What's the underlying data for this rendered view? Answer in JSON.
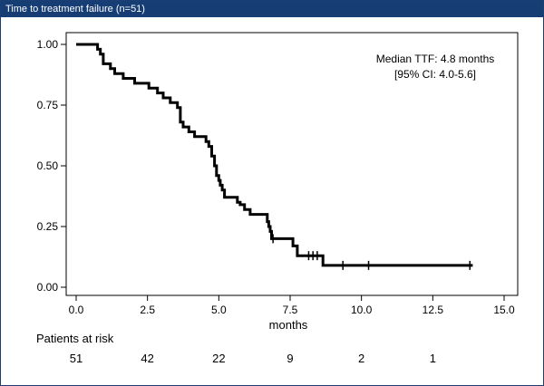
{
  "window_title": "Time to treatment failure (n=51)",
  "chart_data": {
    "type": "line",
    "subtype": "kaplan-meier step",
    "title": "Time to treatment failure (n=51)",
    "xlabel": "months",
    "ylabel": "",
    "xlim": [
      0,
      15
    ],
    "ylim": [
      0,
      1
    ],
    "x_ticks": [
      0,
      2.5,
      5,
      7.5,
      10,
      12.5,
      15
    ],
    "x_tick_labels": [
      "0.0",
      "2.5",
      "5.0",
      "7.5",
      "10.0",
      "12.5",
      "15.0"
    ],
    "y_ticks": [
      0,
      0.25,
      0.5,
      0.75,
      1
    ],
    "y_tick_labels": [
      "0.00",
      "0.25",
      "0.50",
      "0.75",
      "1.00"
    ],
    "grid": false,
    "annotation": {
      "lines": [
        "Median TTF: 4.8 months",
        "[95% CI: 4.0-5.6]"
      ]
    },
    "series": [
      {
        "steps": [
          [
            0,
            1.0
          ],
          [
            0.75,
            0.98
          ],
          [
            0.85,
            0.96
          ],
          [
            0.95,
            0.92
          ],
          [
            1.2,
            0.9
          ],
          [
            1.35,
            0.88
          ],
          [
            1.65,
            0.86
          ],
          [
            2.05,
            0.84
          ],
          [
            2.55,
            0.82
          ],
          [
            2.85,
            0.8
          ],
          [
            3.05,
            0.78
          ],
          [
            3.3,
            0.76
          ],
          [
            3.55,
            0.74
          ],
          [
            3.65,
            0.68
          ],
          [
            3.75,
            0.66
          ],
          [
            3.95,
            0.64
          ],
          [
            4.15,
            0.62
          ],
          [
            4.55,
            0.6
          ],
          [
            4.65,
            0.58
          ],
          [
            4.75,
            0.54
          ],
          [
            4.85,
            0.5
          ],
          [
            4.92,
            0.46
          ],
          [
            5.0,
            0.44
          ],
          [
            5.05,
            0.42
          ],
          [
            5.12,
            0.4
          ],
          [
            5.2,
            0.37
          ],
          [
            5.65,
            0.35
          ],
          [
            5.75,
            0.34
          ],
          [
            5.9,
            0.32
          ],
          [
            6.1,
            0.3
          ],
          [
            6.7,
            0.27
          ],
          [
            6.75,
            0.25
          ],
          [
            6.8,
            0.23
          ],
          [
            6.85,
            0.2
          ],
          [
            7.6,
            0.17
          ],
          [
            7.75,
            0.13
          ],
          [
            8.65,
            0.09
          ],
          [
            13.9,
            0.09
          ]
        ],
        "censored": [
          [
            6.9,
            0.2
          ],
          [
            8.15,
            0.13
          ],
          [
            8.3,
            0.13
          ],
          [
            8.45,
            0.13
          ],
          [
            9.35,
            0.09
          ],
          [
            10.25,
            0.09
          ],
          [
            13.8,
            0.09
          ]
        ]
      }
    ],
    "risk_table": {
      "label": "Patients at risk",
      "times": [
        0,
        2.5,
        5,
        7.5,
        10,
        12.5
      ],
      "counts": [
        "51",
        "42",
        "22",
        "9",
        "2",
        "1"
      ]
    }
  }
}
